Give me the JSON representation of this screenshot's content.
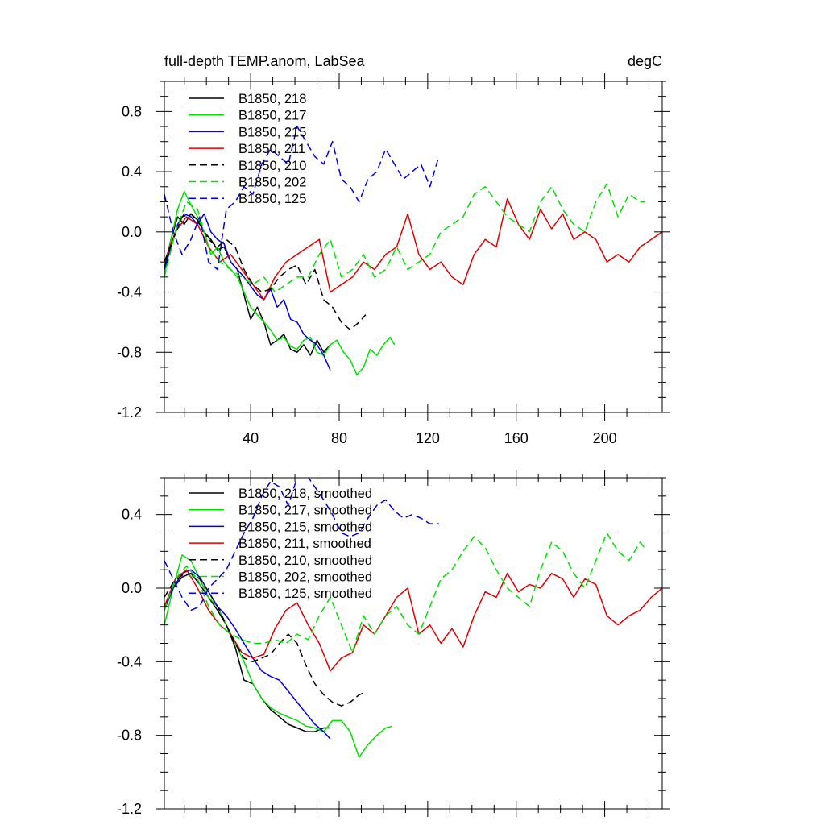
{
  "chart_data": [
    {
      "type": "line",
      "title": "full-depth TEMP.anom, LabSea",
      "units": "degC",
      "xlim": [
        1,
        226
      ],
      "ylim": [
        -1.2,
        1.0
      ],
      "xticks": [
        40,
        80,
        120,
        160,
        200
      ],
      "xtick_labels": [
        "40",
        "80",
        "120",
        "160",
        "200"
      ],
      "yticks": [
        -1.2,
        -0.8,
        -0.4,
        0.0,
        0.4,
        0.8
      ],
      "ytick_labels": [
        "-1.2",
        "-0.8",
        "-0.4",
        "0.0",
        "0.4",
        "0.8"
      ],
      "legend_position": "top-left",
      "grid": false,
      "series": [
        {
          "name": "B1850, 218",
          "color": "#000000",
          "dash": "solid",
          "x": [
            1,
            4,
            7,
            10,
            13,
            16,
            19,
            22,
            25,
            28,
            31,
            34,
            37,
            40,
            43,
            46,
            49,
            52,
            55,
            58,
            61,
            64,
            67,
            70,
            73,
            76
          ],
          "y": [
            -0.25,
            -0.05,
            0.1,
            0.05,
            0.12,
            0.08,
            0.0,
            -0.05,
            -0.12,
            -0.1,
            -0.2,
            -0.25,
            -0.42,
            -0.58,
            -0.5,
            -0.6,
            -0.75,
            -0.72,
            -0.68,
            -0.78,
            -0.8,
            -0.75,
            -0.82,
            -0.72,
            -0.8,
            -0.75
          ]
        },
        {
          "name": "B1850, 217",
          "color": "#00e000",
          "dash": "solid",
          "x": [
            1,
            4,
            7,
            10,
            13,
            16,
            19,
            22,
            25,
            28,
            31,
            34,
            37,
            40,
            43,
            46,
            49,
            52,
            55,
            58,
            61,
            64,
            67,
            70,
            73,
            76,
            79,
            82,
            85,
            88,
            91,
            94,
            97,
            100,
            103,
            105
          ],
          "y": [
            -0.3,
            -0.05,
            0.15,
            0.27,
            0.18,
            0.1,
            0.0,
            -0.15,
            -0.1,
            -0.2,
            -0.25,
            -0.3,
            -0.4,
            -0.5,
            -0.55,
            -0.6,
            -0.65,
            -0.72,
            -0.7,
            -0.76,
            -0.78,
            -0.72,
            -0.7,
            -0.8,
            -0.82,
            -0.75,
            -0.72,
            -0.8,
            -0.85,
            -0.95,
            -0.9,
            -0.78,
            -0.82,
            -0.75,
            -0.7,
            -0.75
          ]
        },
        {
          "name": "B1850, 215",
          "color": "#0000e0",
          "dash": "solid",
          "x": [
            1,
            4,
            7,
            10,
            13,
            16,
            19,
            22,
            25,
            28,
            31,
            34,
            37,
            40,
            43,
            46,
            49,
            52,
            55,
            58,
            61,
            64,
            67,
            70,
            73,
            76
          ],
          "y": [
            -0.25,
            -0.1,
            0.05,
            0.12,
            0.1,
            0.05,
            0.12,
            0.0,
            -0.05,
            -0.08,
            -0.2,
            -0.25,
            -0.3,
            -0.36,
            -0.42,
            -0.45,
            -0.38,
            -0.5,
            -0.45,
            -0.58,
            -0.6,
            -0.68,
            -0.72,
            -0.75,
            -0.82,
            -0.92
          ]
        },
        {
          "name": "B1850, 211",
          "color": "#e00000",
          "dash": "solid",
          "x": [
            1,
            6,
            11,
            16,
            21,
            26,
            31,
            36,
            41,
            46,
            51,
            56,
            61,
            66,
            71,
            76,
            81,
            86,
            91,
            96,
            101,
            106,
            111,
            116,
            121,
            126,
            131,
            136,
            141,
            146,
            151,
            156,
            161,
            166,
            171,
            176,
            181,
            186,
            191,
            196,
            201,
            206,
            211,
            216,
            221,
            226
          ],
          "y": [
            -0.2,
            0.0,
            0.1,
            0.05,
            -0.1,
            -0.2,
            -0.15,
            -0.25,
            -0.35,
            -0.45,
            -0.3,
            -0.2,
            -0.15,
            -0.1,
            -0.05,
            -0.4,
            -0.35,
            -0.3,
            -0.2,
            -0.25,
            -0.15,
            -0.1,
            0.12,
            -0.15,
            -0.25,
            -0.2,
            -0.3,
            -0.35,
            -0.15,
            -0.05,
            -0.1,
            0.22,
            0.05,
            -0.05,
            0.15,
            0.02,
            0.12,
            -0.05,
            0.0,
            -0.05,
            -0.2,
            -0.15,
            -0.2,
            -0.1,
            -0.05,
            0.0
          ]
        },
        {
          "name": "B1850, 210",
          "color": "#000000",
          "dash": "dashed",
          "x": [
            1,
            5,
            9,
            13,
            17,
            21,
            25,
            29,
            33,
            37,
            41,
            45,
            49,
            53,
            57,
            61,
            65,
            69,
            73,
            77,
            81,
            85,
            89,
            92
          ],
          "y": [
            -0.2,
            -0.05,
            0.1,
            0.12,
            0.05,
            -0.05,
            -0.1,
            -0.05,
            -0.1,
            -0.25,
            -0.35,
            -0.4,
            -0.38,
            -0.3,
            -0.25,
            -0.22,
            -0.35,
            -0.25,
            -0.45,
            -0.5,
            -0.6,
            -0.65,
            -0.6,
            -0.55
          ]
        },
        {
          "name": "B1850, 202",
          "color": "#00e000",
          "dash": "dashed",
          "x": [
            1,
            6,
            11,
            16,
            21,
            26,
            31,
            36,
            41,
            46,
            51,
            56,
            61,
            66,
            71,
            76,
            81,
            86,
            91,
            96,
            101,
            106,
            111,
            116,
            121,
            126,
            131,
            136,
            141,
            146,
            151,
            156,
            161,
            166,
            171,
            176,
            181,
            186,
            191,
            196,
            201,
            206,
            211,
            216,
            218
          ],
          "y": [
            -0.3,
            0.0,
            0.2,
            0.15,
            -0.1,
            -0.2,
            -0.25,
            -0.3,
            -0.35,
            -0.3,
            -0.4,
            -0.35,
            -0.3,
            -0.3,
            -0.15,
            -0.05,
            -0.3,
            -0.25,
            -0.15,
            -0.3,
            -0.25,
            -0.1,
            -0.25,
            -0.2,
            -0.15,
            0.0,
            0.05,
            0.1,
            0.25,
            0.3,
            0.2,
            0.1,
            0.05,
            0.0,
            0.2,
            0.3,
            0.15,
            0.05,
            0.0,
            0.2,
            0.32,
            0.1,
            0.25,
            0.2,
            0.2
          ]
        },
        {
          "name": "B1850, 125",
          "color": "#0000e0",
          "dash": "dashed",
          "x": [
            1,
            5,
            9,
            13,
            17,
            21,
            25,
            29,
            33,
            37,
            41,
            45,
            49,
            53,
            57,
            61,
            65,
            69,
            73,
            77,
            81,
            85,
            89,
            93,
            97,
            101,
            105,
            109,
            113,
            117,
            121,
            125
          ],
          "y": [
            0.25,
            0.0,
            -0.15,
            -0.05,
            0.1,
            -0.2,
            -0.25,
            0.15,
            0.2,
            0.3,
            0.25,
            0.45,
            0.55,
            0.5,
            0.45,
            0.7,
            0.6,
            0.5,
            0.45,
            0.6,
            0.35,
            0.3,
            0.2,
            0.35,
            0.4,
            0.55,
            0.45,
            0.35,
            0.4,
            0.45,
            0.3,
            0.5
          ]
        }
      ]
    },
    {
      "type": "line",
      "xlim": [
        1,
        226
      ],
      "ylim": [
        -1.2,
        0.6
      ],
      "xticks": [
        40,
        80,
        120,
        160,
        200
      ],
      "yticks": [
        -1.2,
        -0.8,
        -0.4,
        0.0,
        0.4
      ],
      "ytick_labels": [
        "-1.2",
        "-0.8",
        "-0.4",
        "0.0",
        "0.4"
      ],
      "legend_position": "top-left",
      "grid": false,
      "series": [
        {
          "name": "B1850, 218, smoothed",
          "color": "#000000",
          "dash": "solid",
          "x": [
            1,
            5,
            9,
            13,
            17,
            21,
            25,
            29,
            33,
            37,
            41,
            45,
            49,
            53,
            57,
            61,
            65,
            69,
            73,
            76
          ],
          "y": [
            -0.1,
            0.0,
            0.06,
            0.08,
            0.02,
            -0.05,
            -0.12,
            -0.2,
            -0.32,
            -0.5,
            -0.52,
            -0.6,
            -0.66,
            -0.7,
            -0.74,
            -0.76,
            -0.78,
            -0.78,
            -0.76,
            -0.76
          ]
        },
        {
          "name": "B1850, 217, smoothed",
          "color": "#00e000",
          "dash": "solid",
          "x": [
            1,
            5,
            9,
            13,
            17,
            21,
            25,
            29,
            33,
            37,
            41,
            45,
            49,
            53,
            57,
            61,
            65,
            69,
            73,
            77,
            81,
            85,
            89,
            93,
            97,
            101,
            104
          ],
          "y": [
            -0.2,
            0.0,
            0.18,
            0.15,
            0.05,
            -0.05,
            -0.1,
            -0.2,
            -0.3,
            -0.4,
            -0.52,
            -0.6,
            -0.65,
            -0.68,
            -0.7,
            -0.72,
            -0.75,
            -0.76,
            -0.78,
            -0.72,
            -0.72,
            -0.78,
            -0.92,
            -0.85,
            -0.8,
            -0.76,
            -0.75
          ]
        },
        {
          "name": "B1850, 215, smoothed",
          "color": "#0000e0",
          "dash": "solid",
          "x": [
            1,
            5,
            9,
            13,
            17,
            21,
            25,
            29,
            33,
            37,
            41,
            45,
            49,
            53,
            57,
            61,
            65,
            69,
            73,
            76
          ],
          "y": [
            -0.12,
            0.0,
            0.08,
            0.1,
            0.06,
            -0.02,
            -0.1,
            -0.15,
            -0.22,
            -0.3,
            -0.38,
            -0.45,
            -0.48,
            -0.5,
            -0.56,
            -0.62,
            -0.68,
            -0.74,
            -0.78,
            -0.82
          ]
        },
        {
          "name": "B1850, 211, smoothed",
          "color": "#e00000",
          "dash": "solid",
          "x": [
            1,
            6,
            11,
            16,
            21,
            26,
            31,
            36,
            41,
            46,
            51,
            56,
            61,
            66,
            71,
            76,
            81,
            86,
            91,
            96,
            101,
            106,
            111,
            116,
            121,
            126,
            131,
            136,
            141,
            146,
            151,
            156,
            161,
            166,
            171,
            176,
            181,
            186,
            191,
            196,
            201,
            206,
            211,
            216,
            221,
            226
          ],
          "y": [
            -0.1,
            0.05,
            0.1,
            0.0,
            -0.12,
            -0.2,
            -0.25,
            -0.35,
            -0.38,
            -0.36,
            -0.22,
            -0.12,
            -0.08,
            -0.2,
            -0.3,
            -0.45,
            -0.38,
            -0.35,
            -0.2,
            -0.25,
            -0.15,
            -0.05,
            0.0,
            -0.25,
            -0.2,
            -0.3,
            -0.22,
            -0.32,
            -0.15,
            -0.02,
            -0.05,
            0.08,
            -0.02,
            0.02,
            0.0,
            0.08,
            0.05,
            -0.05,
            0.05,
            0.02,
            -0.15,
            -0.2,
            -0.15,
            -0.12,
            -0.05,
            0.0
          ]
        },
        {
          "name": "B1850, 210, smoothed",
          "color": "#000000",
          "dash": "dashed",
          "x": [
            1,
            5,
            9,
            13,
            17,
            21,
            25,
            29,
            33,
            37,
            41,
            45,
            49,
            53,
            57,
            61,
            65,
            69,
            73,
            77,
            81,
            85,
            89,
            91
          ],
          "y": [
            -0.05,
            0.03,
            0.07,
            0.08,
            0.05,
            -0.02,
            -0.1,
            -0.2,
            -0.3,
            -0.38,
            -0.4,
            -0.38,
            -0.36,
            -0.3,
            -0.25,
            -0.3,
            -0.42,
            -0.52,
            -0.58,
            -0.62,
            -0.64,
            -0.62,
            -0.58,
            -0.57
          ]
        },
        {
          "name": "B1850, 202, smoothed",
          "color": "#00e000",
          "dash": "dashed",
          "x": [
            1,
            6,
            11,
            16,
            21,
            26,
            31,
            36,
            41,
            46,
            51,
            56,
            61,
            66,
            71,
            76,
            81,
            86,
            91,
            96,
            101,
            106,
            111,
            116,
            121,
            126,
            131,
            136,
            141,
            146,
            151,
            156,
            161,
            166,
            171,
            176,
            181,
            186,
            191,
            196,
            201,
            206,
            211,
            216,
            218
          ],
          "y": [
            -0.12,
            0.05,
            0.12,
            0.05,
            -0.1,
            -0.2,
            -0.25,
            -0.28,
            -0.3,
            -0.3,
            -0.28,
            -0.3,
            -0.25,
            -0.28,
            -0.15,
            -0.05,
            -0.2,
            -0.35,
            -0.15,
            -0.25,
            -0.15,
            -0.1,
            -0.2,
            -0.25,
            -0.1,
            0.05,
            0.1,
            0.2,
            0.28,
            0.22,
            0.1,
            0.0,
            -0.05,
            -0.1,
            0.1,
            0.25,
            0.2,
            0.08,
            0.0,
            0.15,
            0.3,
            0.2,
            0.15,
            0.25,
            0.22
          ]
        },
        {
          "name": "B1850, 125, smoothed",
          "color": "#0000e0",
          "dash": "dashed",
          "x": [
            1,
            5,
            9,
            13,
            17,
            21,
            25,
            29,
            33,
            37,
            41,
            45,
            49,
            53,
            57,
            61,
            65,
            69,
            73,
            77,
            81,
            85,
            89,
            93,
            97,
            101,
            105,
            109,
            113,
            117,
            121,
            125
          ],
          "y": [
            0.15,
            0.05,
            -0.05,
            -0.12,
            -0.1,
            0.0,
            0.05,
            0.1,
            0.2,
            0.3,
            0.38,
            0.5,
            0.58,
            0.55,
            0.45,
            0.6,
            0.62,
            0.55,
            0.48,
            0.4,
            0.3,
            0.28,
            0.3,
            0.38,
            0.45,
            0.48,
            0.42,
            0.38,
            0.4,
            0.38,
            0.35,
            0.35
          ]
        }
      ]
    }
  ]
}
